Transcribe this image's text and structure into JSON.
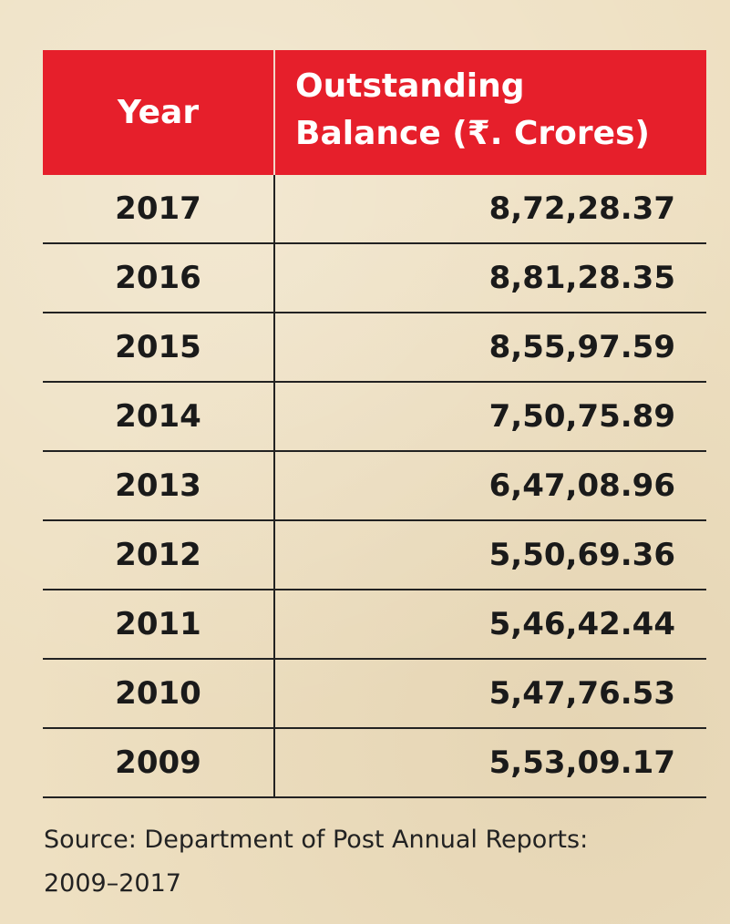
{
  "chart_data": {
    "type": "table",
    "columns": [
      "Year",
      "Outstanding Balance (₹. Crores)"
    ],
    "header_lines": [
      "Outstanding",
      "Balance (₹. Crores)"
    ],
    "rows": [
      {
        "year": "2017",
        "value": "8,72,28.37"
      },
      {
        "year": "2016",
        "value": "8,81,28.35"
      },
      {
        "year": "2015",
        "value": "8,55,97.59"
      },
      {
        "year": "2014",
        "value": "7,50,75.89"
      },
      {
        "year": "2013",
        "value": "6,47,08.96"
      },
      {
        "year": "2012",
        "value": "5,50,69.36"
      },
      {
        "year": "2011",
        "value": "5,46,42.44"
      },
      {
        "year": "2010",
        "value": "5,47,76.53"
      },
      {
        "year": "2009",
        "value": "5,53,09.17"
      }
    ],
    "source_lines": [
      "Source: Department of Post Annual Reports:",
      "2009–2017"
    ]
  },
  "colors": {
    "header": "#e61f2b",
    "background": "#eee0c2"
  }
}
